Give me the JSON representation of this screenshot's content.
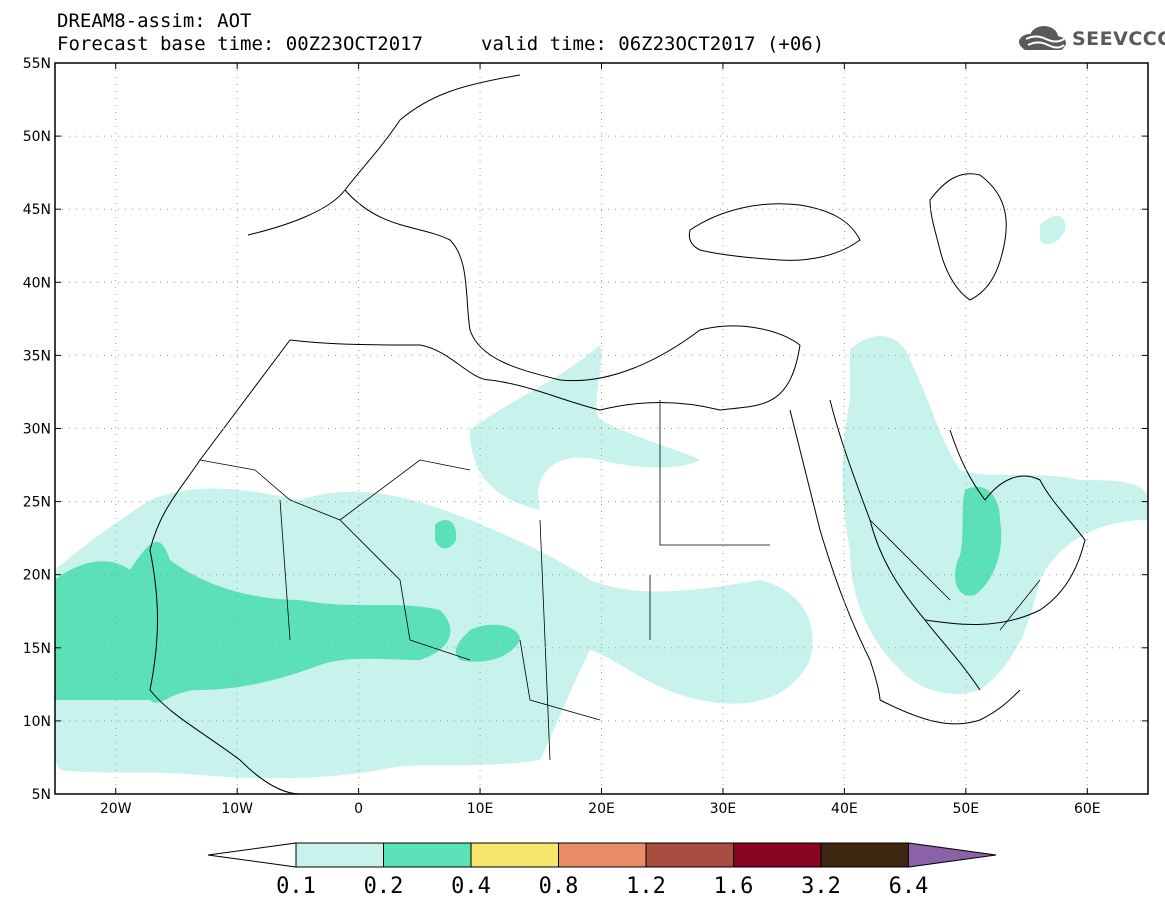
{
  "header": {
    "title_line1": "DREAM8-assim: AOT",
    "title_line2": "Forecast base time: 00Z23OCT2017",
    "valid_time": "valid time: 06Z23OCT2017 (+06)"
  },
  "logo": {
    "text": "SEEVCCC",
    "icon": "cloud-icon"
  },
  "map": {
    "lon_range": [
      -25,
      65
    ],
    "lat_range": [
      5,
      55
    ],
    "lat_labels": [
      {
        "lat": 55,
        "text": "55N"
      },
      {
        "lat": 50,
        "text": "50N"
      },
      {
        "lat": 45,
        "text": "45N"
      },
      {
        "lat": 40,
        "text": "40N"
      },
      {
        "lat": 35,
        "text": "35N"
      },
      {
        "lat": 30,
        "text": "30N"
      },
      {
        "lat": 25,
        "text": "25N"
      },
      {
        "lat": 20,
        "text": "20N"
      },
      {
        "lat": 15,
        "text": "15N"
      },
      {
        "lat": 10,
        "text": "10N"
      },
      {
        "lat": 5,
        "text": "5N"
      }
    ],
    "lon_labels": [
      {
        "lon": -20,
        "text": "20W"
      },
      {
        "lon": -10,
        "text": "10W"
      },
      {
        "lon": 0,
        "text": "0"
      },
      {
        "lon": 10,
        "text": "10E"
      },
      {
        "lon": 20,
        "text": "20E"
      },
      {
        "lon": 30,
        "text": "30E"
      },
      {
        "lon": 40,
        "text": "40E"
      },
      {
        "lon": 50,
        "text": "50E"
      },
      {
        "lon": 60,
        "text": "60E"
      }
    ],
    "grid": true
  },
  "colorbar": {
    "bins": [
      {
        "color": "#c8f2ec"
      },
      {
        "color": "#5ce0b7"
      },
      {
        "color": "#f5e56b"
      },
      {
        "color": "#e88d66"
      },
      {
        "color": "#a84d3f"
      },
      {
        "color": "#850523"
      },
      {
        "color": "#3d2510"
      }
    ],
    "over_color": "#8b62a8",
    "under_color": "#ffffff",
    "labels": [
      "0.1",
      "0.2",
      "0.4",
      "0.8",
      "1.2",
      "1.6",
      "3.2",
      "6.4"
    ]
  }
}
